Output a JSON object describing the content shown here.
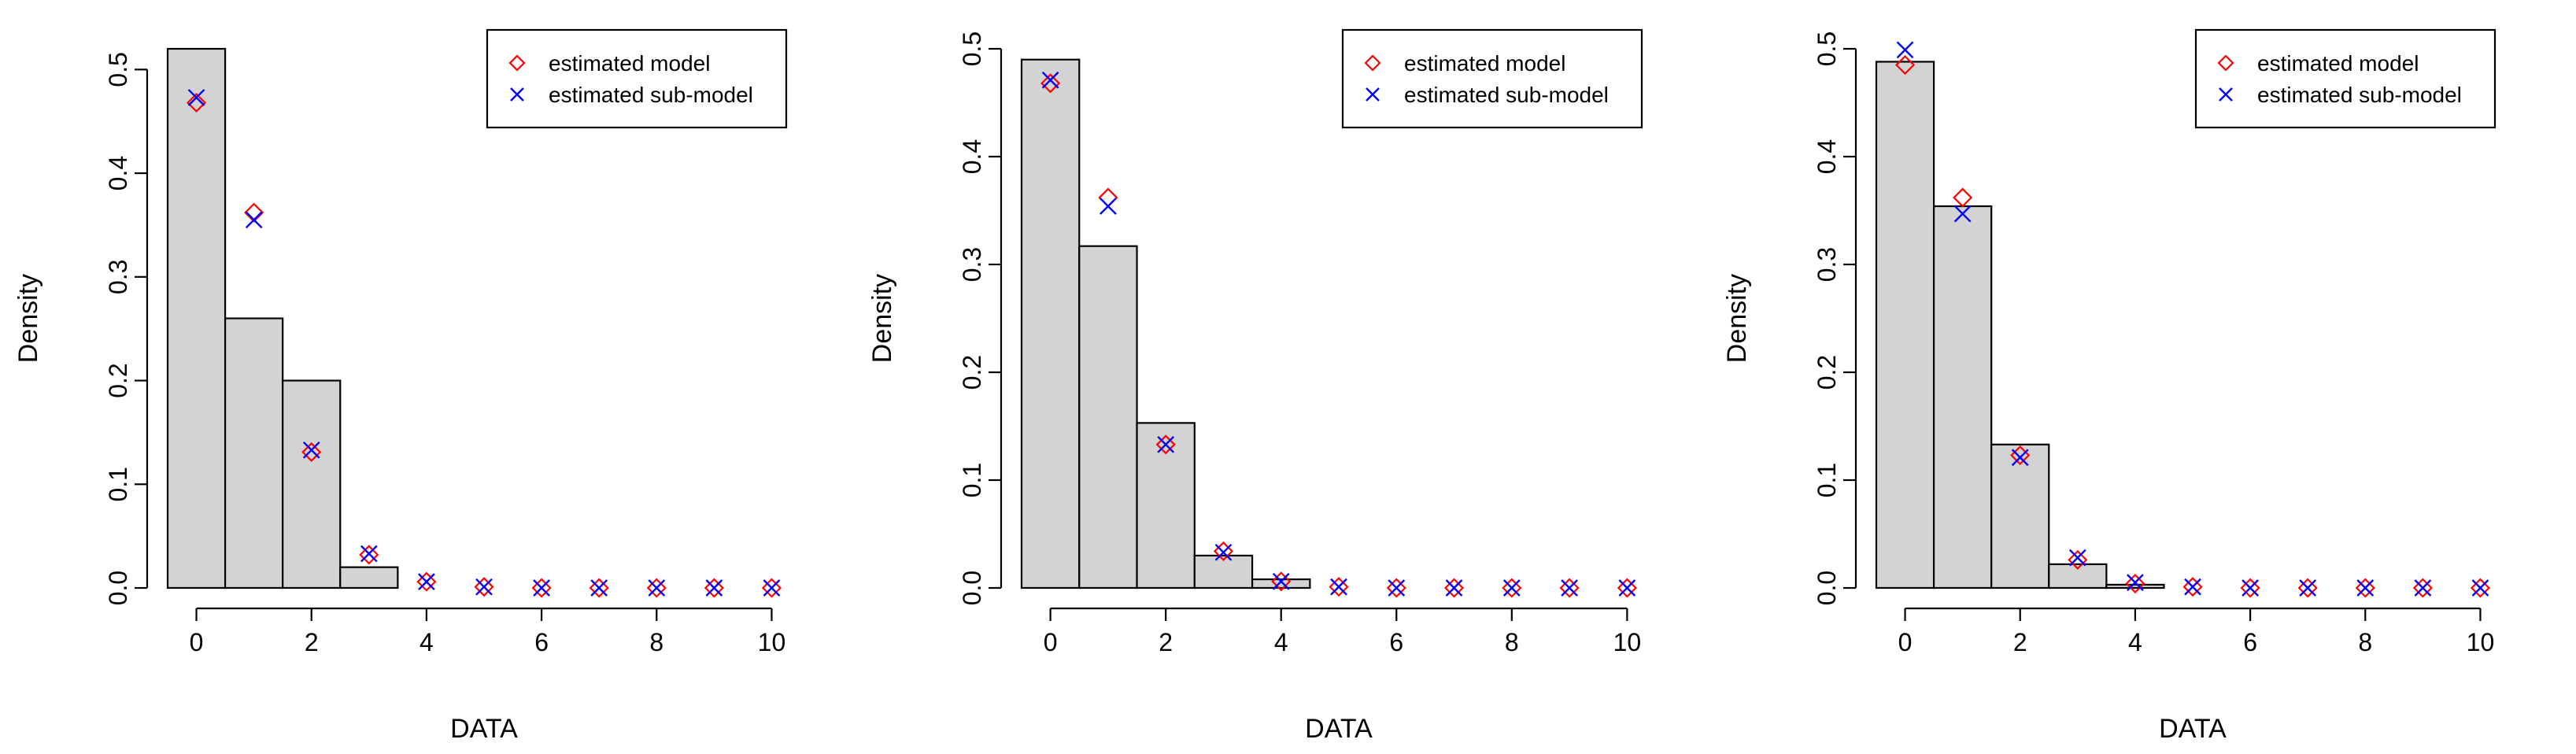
{
  "colors": {
    "bar_fill": "#d3d3d3",
    "bar_stroke": "#000000",
    "model": "#ff0000",
    "sub_model": "#0000ff"
  },
  "icons": {
    "model_marker": "open-diamond",
    "sub_model_marker": "x-cross"
  },
  "chart_data": [
    {
      "type": "bar",
      "title": "",
      "xlabel": "DATA",
      "ylabel": "Density",
      "xlim": [
        -0.5,
        10.5
      ],
      "ylim": [
        0,
        0.52
      ],
      "xticks": [
        0,
        2,
        4,
        6,
        8,
        10
      ],
      "xtick_labels": [
        "0",
        "2",
        "4",
        "6",
        "8",
        "10"
      ],
      "yticks": [
        0,
        0.1,
        0.2,
        0.3,
        0.4,
        0.5
      ],
      "ytick_labels": [
        "0.0",
        "0.1",
        "0.2",
        "0.3",
        "0.4",
        "0.5"
      ],
      "legend_position": "top-right",
      "histogram": {
        "bin_edges": [
          -0.5,
          0.5,
          1.5,
          2.5,
          3.5,
          4.5
        ],
        "density": [
          0.52,
          0.26,
          0.2,
          0.02,
          0.0
        ]
      },
      "series": [
        {
          "name": "estimated model",
          "marker": "diamond",
          "x": [
            0,
            1,
            2,
            3,
            4,
            5,
            6,
            7,
            8,
            9,
            10
          ],
          "values": [
            0.468,
            0.362,
            0.131,
            0.032,
            0.006,
            0.001,
            0.0,
            0.0,
            0.0,
            0.0,
            0.0
          ]
        },
        {
          "name": "estimated sub-model",
          "marker": "x",
          "x": [
            0,
            1,
            2,
            3,
            4,
            5,
            6,
            7,
            8,
            9,
            10
          ],
          "values": [
            0.473,
            0.355,
            0.133,
            0.033,
            0.006,
            0.001,
            0.0,
            0.0,
            0.0,
            0.0,
            0.0
          ]
        }
      ]
    },
    {
      "type": "bar",
      "title": "",
      "xlabel": "DATA",
      "ylabel": "Density",
      "xlim": [
        -0.5,
        10.5
      ],
      "ylim": [
        0,
        0.5
      ],
      "xticks": [
        0,
        2,
        4,
        6,
        8,
        10
      ],
      "xtick_labels": [
        "0",
        "2",
        "4",
        "6",
        "8",
        "10"
      ],
      "yticks": [
        0,
        0.1,
        0.2,
        0.3,
        0.4,
        0.5
      ],
      "ytick_labels": [
        "0.0",
        "0.1",
        "0.2",
        "0.3",
        "0.4",
        "0.5"
      ],
      "legend_position": "top-right",
      "histogram": {
        "bin_edges": [
          -0.5,
          0.5,
          1.5,
          2.5,
          3.5,
          4.5
        ],
        "density": [
          0.49,
          0.317,
          0.153,
          0.03,
          0.008
        ]
      },
      "series": [
        {
          "name": "estimated model",
          "marker": "diamond",
          "x": [
            0,
            1,
            2,
            3,
            4,
            5,
            6,
            7,
            8,
            9,
            10
          ],
          "values": [
            0.468,
            0.362,
            0.133,
            0.034,
            0.006,
            0.001,
            0.0,
            0.0,
            0.0,
            0.0,
            0.0
          ]
        },
        {
          "name": "estimated sub-model",
          "marker": "x",
          "x": [
            0,
            1,
            2,
            3,
            4,
            5,
            6,
            7,
            8,
            9,
            10
          ],
          "values": [
            0.471,
            0.354,
            0.133,
            0.033,
            0.006,
            0.001,
            0.0,
            0.0,
            0.0,
            0.0,
            0.0
          ]
        }
      ]
    },
    {
      "type": "bar",
      "title": "",
      "xlabel": "DATA",
      "ylabel": "Density",
      "xlim": [
        -0.5,
        10.5
      ],
      "ylim": [
        0,
        0.5
      ],
      "xticks": [
        0,
        2,
        4,
        6,
        8,
        10
      ],
      "xtick_labels": [
        "0",
        "2",
        "4",
        "6",
        "8",
        "10"
      ],
      "yticks": [
        0,
        0.1,
        0.2,
        0.3,
        0.4,
        0.5
      ],
      "ytick_labels": [
        "0.0",
        "0.1",
        "0.2",
        "0.3",
        "0.4",
        "0.5"
      ],
      "legend_position": "top-right",
      "histogram": {
        "bin_edges": [
          -0.5,
          0.5,
          1.5,
          2.5,
          3.5,
          4.5
        ],
        "density": [
          0.488,
          0.354,
          0.133,
          0.022,
          0.003
        ]
      },
      "series": [
        {
          "name": "estimated model",
          "marker": "diamond",
          "x": [
            0,
            1,
            2,
            3,
            4,
            5,
            6,
            7,
            8,
            9,
            10
          ],
          "values": [
            0.485,
            0.362,
            0.123,
            0.026,
            0.004,
            0.001,
            0.0,
            0.0,
            0.0,
            0.0,
            0.0
          ]
        },
        {
          "name": "estimated sub-model",
          "marker": "x",
          "x": [
            0,
            1,
            2,
            3,
            4,
            5,
            6,
            7,
            8,
            9,
            10
          ],
          "values": [
            0.499,
            0.347,
            0.121,
            0.028,
            0.005,
            0.001,
            0.0,
            0.0,
            0.0,
            0.0,
            0.0
          ]
        }
      ]
    }
  ]
}
